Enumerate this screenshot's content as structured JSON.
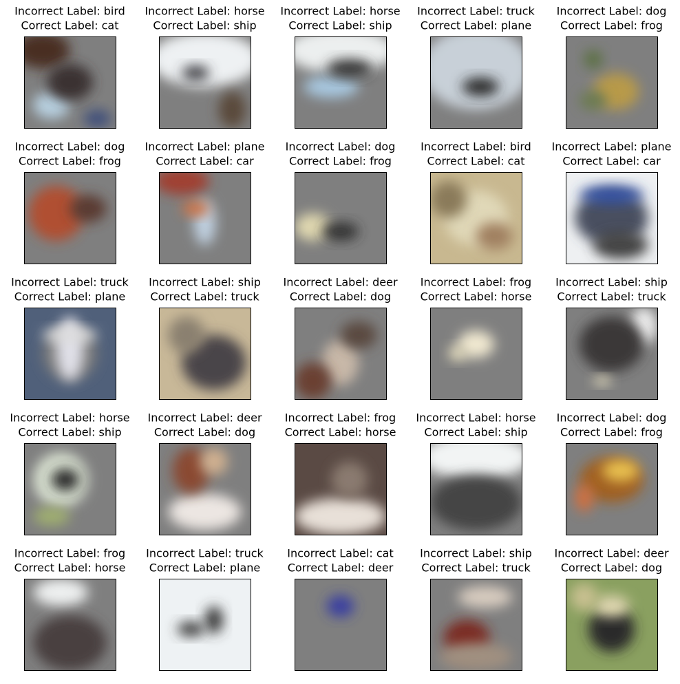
{
  "panels": [
    {
      "incorrect": "Incorrect Label: bird",
      "correct": "Correct Label: cat"
    },
    {
      "incorrect": "Incorrect Label: horse",
      "correct": "Correct Label: ship"
    },
    {
      "incorrect": "Incorrect Label: horse",
      "correct": "Correct Label: ship"
    },
    {
      "incorrect": "Incorrect Label: truck",
      "correct": "Correct Label: plane"
    },
    {
      "incorrect": "Incorrect Label: dog",
      "correct": "Correct Label: frog"
    },
    {
      "incorrect": "Incorrect Label: dog",
      "correct": "Correct Label: frog"
    },
    {
      "incorrect": "Incorrect Label: plane",
      "correct": "Correct Label: car"
    },
    {
      "incorrect": "Incorrect Label: dog",
      "correct": "Correct Label: frog"
    },
    {
      "incorrect": "Incorrect Label: bird",
      "correct": "Correct Label: cat"
    },
    {
      "incorrect": "Incorrect Label: plane",
      "correct": "Correct Label: car"
    },
    {
      "incorrect": "Incorrect Label: truck",
      "correct": "Correct Label: plane"
    },
    {
      "incorrect": "Incorrect Label: ship",
      "correct": "Correct Label: truck"
    },
    {
      "incorrect": "Incorrect Label: deer",
      "correct": "Correct Label: dog"
    },
    {
      "incorrect": "Incorrect Label: frog",
      "correct": "Correct Label: horse"
    },
    {
      "incorrect": "Incorrect Label: ship",
      "correct": "Correct Label: truck"
    },
    {
      "incorrect": "Incorrect Label: horse",
      "correct": "Correct Label: ship"
    },
    {
      "incorrect": "Incorrect Label: deer",
      "correct": "Correct Label: dog"
    },
    {
      "incorrect": "Incorrect Label: frog",
      "correct": "Correct Label: horse"
    },
    {
      "incorrect": "Incorrect Label: horse",
      "correct": "Correct Label: ship"
    },
    {
      "incorrect": "Incorrect Label: dog",
      "correct": "Correct Label: frog"
    },
    {
      "incorrect": "Incorrect Label: frog",
      "correct": "Correct Label: horse"
    },
    {
      "incorrect": "Incorrect Label: truck",
      "correct": "Correct Label: plane"
    },
    {
      "incorrect": "Incorrect Label: cat",
      "correct": "Correct Label: deer"
    },
    {
      "incorrect": "Incorrect Label: ship",
      "correct": "Correct Label: truck"
    },
    {
      "incorrect": "Incorrect Label: deer",
      "correct": "Correct Label: dog"
    }
  ]
}
